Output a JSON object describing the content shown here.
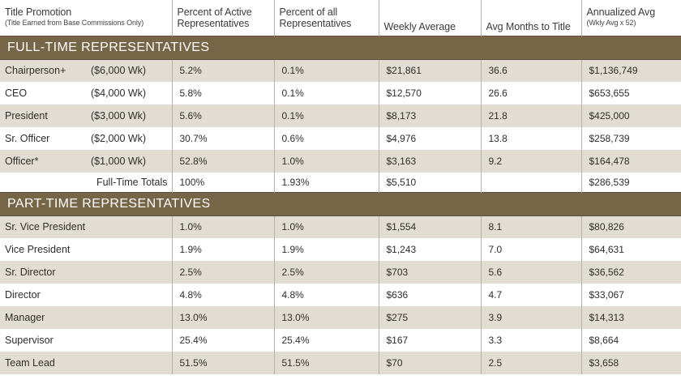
{
  "header": {
    "col0_title": "Title Promotion",
    "col0_sub": "(Title Earned from Base Commissions Only)",
    "col1": [
      "Percent of Active",
      "Representatives"
    ],
    "col2": [
      "Percent of all",
      "Representatives"
    ],
    "col3": "Weekly Average",
    "col4": "Avg Months to Title",
    "col5_title": "Annualized Avg",
    "col5_sub": "(Wkly Avg x 52)"
  },
  "full_time": {
    "heading": "FULL-TIME REPRESENTATIVES",
    "rows": [
      {
        "title": "Chairperson+",
        "weekly": "($6,000 Wk)",
        "pct_active": "5.2%",
        "pct_all": "0.1%",
        "avg": "$21,861",
        "months": "36.6",
        "annual": "$1,136,749"
      },
      {
        "title": "CEO",
        "weekly": "($4,000 Wk)",
        "pct_active": "5.8%",
        "pct_all": "0.1%",
        "avg": "$12,570",
        "months": "26.6",
        "annual": "$653,655"
      },
      {
        "title": "President",
        "weekly": "($3,000 Wk)",
        "pct_active": "5.6%",
        "pct_all": "0.1%",
        "avg": "$8,173",
        "months": "21.8",
        "annual": "$425,000"
      },
      {
        "title": "Sr. Officer",
        "weekly": "($2,000 Wk)",
        "pct_active": "30.7%",
        "pct_all": "0.6%",
        "avg": "$4,976",
        "months": "13.8",
        "annual": "$258,739"
      },
      {
        "title": "Officer*",
        "weekly": "($1,000 Wk)",
        "pct_active": "52.8%",
        "pct_all": "1.0%",
        "avg": "$3,163",
        "months": "9.2",
        "annual": "$164,478"
      }
    ],
    "totals": {
      "label": "Full-Time Totals",
      "pct_active": "100%",
      "pct_all": "1.93%",
      "avg": "$5,510",
      "months": "",
      "annual": "$286,539"
    }
  },
  "part_time": {
    "heading": "PART-TIME REPRESENTATIVES",
    "rows": [
      {
        "title": "Sr. Vice President",
        "pct_active": "1.0%",
        "pct_all": "1.0%",
        "avg": "$1,554",
        "months": "8.1",
        "annual": "$80,826"
      },
      {
        "title": "Vice President",
        "pct_active": "1.9%",
        "pct_all": "1.9%",
        "avg": "$1,243",
        "months": "7.0",
        "annual": "$64,631"
      },
      {
        "title": "Sr. Director",
        "pct_active": "2.5%",
        "pct_all": "2.5%",
        "avg": "$703",
        "months": "5.6",
        "annual": "$36,562"
      },
      {
        "title": "Director",
        "pct_active": "4.8%",
        "pct_all": "4.8%",
        "avg": "$636",
        "months": "4.7",
        "annual": "$33,067"
      },
      {
        "title": "Manager",
        "pct_active": "13.0%",
        "pct_all": "13.0%",
        "avg": "$275",
        "months": "3.9",
        "annual": "$14,313"
      },
      {
        "title": "Supervisor",
        "pct_active": "25.4%",
        "pct_all": "25.4%",
        "avg": "$167",
        "months": "3.3",
        "annual": "$8,664"
      },
      {
        "title": "Team Lead",
        "pct_active": "51.5%",
        "pct_all": "51.5%",
        "avg": "$70",
        "months": "2.5",
        "annual": "$3,658"
      }
    ]
  },
  "colors": {
    "section_bar": "#776548",
    "row_shade": "#e2ddd2"
  }
}
